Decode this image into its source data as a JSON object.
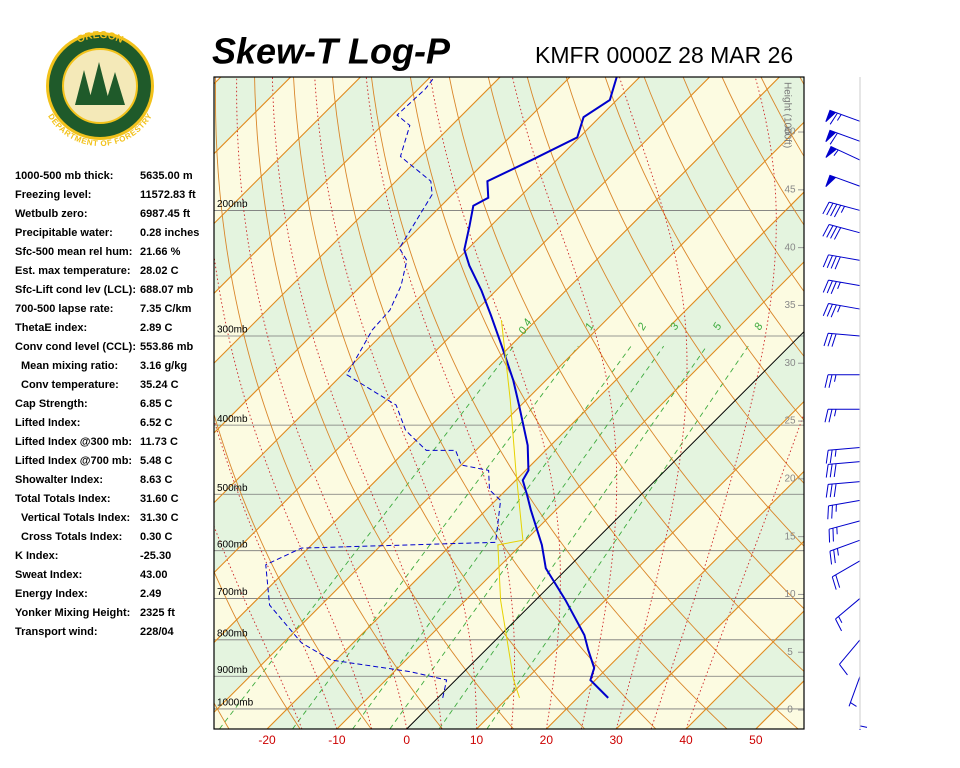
{
  "chart_data": {
    "type": "skew-t",
    "title": "Skew-T Log-P",
    "subtitle": "KMFR 0000Z 28 MAR 26",
    "y2label": "Height (1000ft)",
    "xlim": [
      -27.6,
      56.9
    ],
    "xticks": [
      -20,
      -10,
      0,
      10,
      20,
      30,
      40,
      50
    ],
    "ylim": [
      1067,
      130
    ],
    "log_y": true,
    "yticks": [
      {
        "value": 1000,
        "label": "1000mb"
      },
      {
        "value": 900,
        "label": "900mb"
      },
      {
        "value": 800,
        "label": "800mb"
      },
      {
        "value": 700,
        "label": "700mb"
      },
      {
        "value": 600,
        "label": "600mb"
      },
      {
        "value": 500,
        "label": "500mb"
      },
      {
        "value": 400,
        "label": "400mb"
      },
      {
        "value": 300,
        "label": "300mb"
      },
      {
        "value": 200,
        "label": "200mb"
      }
    ],
    "y2lim": [
      -1.64,
      54.76
    ],
    "y2ticks": [
      0,
      5,
      10,
      15,
      20,
      25,
      30,
      35,
      40,
      45,
      50
    ],
    "mixing_ratios": [
      0.4,
      1,
      2,
      3,
      5,
      8
    ],
    "series": [
      {
        "color": "#0000cc",
        "style": "solid",
        "pressure": [
          965,
          911,
          876,
          827,
          788,
          704,
          635,
          589,
          526,
          501,
          478,
          463,
          427,
          375,
          346,
          309,
          281,
          259,
          239,
          227,
          210,
          197,
          192,
          182,
          170,
          158,
          148,
          140,
          130
        ],
        "temperature": [
          24.4,
          19.3,
          18.1,
          14.7,
          12.0,
          4.3,
          -3.1,
          -7.0,
          -13.6,
          -16.3,
          -19.0,
          -19.6,
          -23.3,
          -30.3,
          -34.7,
          -41.4,
          -47.1,
          -52.1,
          -57.4,
          -60.4,
          -63.1,
          -65.4,
          -64.4,
          -66.9,
          -63.6,
          -60.3,
          -62.3,
          -61.0,
          -63.3
        ]
      },
      {
        "color": "#0000cc",
        "style": "dashed",
        "pressure": [
          965,
          911,
          887,
          854,
          808,
          715,
          628,
          595,
          584,
          510,
          493,
          463,
          455,
          434,
          434,
          407,
          375,
          340,
          294,
          276,
          255,
          235,
          226,
          190,
          182,
          168,
          152,
          147,
          135,
          130
        ],
        "temperature": [
          0.7,
          -1.3,
          -7.6,
          -20.7,
          -27.4,
          -37.4,
          -43.7,
          -41.0,
          -14.0,
          -19.3,
          -22.4,
          -25.3,
          -30.0,
          -32.9,
          -37.1,
          -42.9,
          -47.9,
          -59.3,
          -62.1,
          -62.4,
          -64.3,
          -67.1,
          -69.9,
          -72.9,
          -75.0,
          -82.9,
          -86.0,
          -89.3,
          -89.0,
          -89.4
        ]
      },
      {
        "color": "#e6d200",
        "style": "solid",
        "pressure": [
          965,
          911,
          704,
          589,
          580,
          463,
          368,
          285
        ],
        "temperature": [
          11.7,
          8.3,
          -5.0,
          -13.3,
          -10.4,
          -21.4,
          -32.4,
          -45.0
        ]
      }
    ],
    "winds": {
      "pressure": [
        150,
        160,
        170,
        185,
        200,
        215,
        235,
        255,
        275,
        300,
        340,
        380,
        430,
        450,
        480,
        510,
        545,
        580,
        620,
        700,
        800,
        900,
        965
      ],
      "direction": [
        290,
        290,
        295,
        290,
        285,
        285,
        280,
        280,
        280,
        275,
        270,
        270,
        265,
        265,
        265,
        260,
        255,
        250,
        240,
        230,
        220,
        200,
        180
      ],
      "speed": [
        65,
        60,
        55,
        50,
        45,
        40,
        40,
        35,
        35,
        30,
        25,
        25,
        25,
        30,
        30,
        25,
        25,
        25,
        20,
        15,
        10,
        5,
        5
      ],
      "color": "#0000cc"
    }
  },
  "logo": {
    "top": "OREGON",
    "bottom": "DEPARTMENT OF FORESTRY"
  },
  "stats": {
    "rows": [
      [
        "1000-500 mb thick:",
        "5635.00 m"
      ],
      [
        "Freezing level:",
        "11572.83 ft"
      ],
      [
        "Wetbulb zero:",
        "6987.45 ft"
      ],
      [
        "Precipitable water:",
        "0.28 inches"
      ],
      [
        "Sfc-500 mean rel hum:",
        "21.66 %"
      ],
      [
        "Est. max temperature:",
        "28.02 C"
      ],
      [
        "Sfc-Lift cond lev (LCL):",
        "688.07 mb"
      ],
      [
        "700-500 lapse rate:",
        "7.35 C/km"
      ],
      [
        "ThetaE index:",
        "2.89 C"
      ],
      [
        "Conv cond level (CCL):",
        "553.86 mb"
      ],
      [
        "Mean mixing ratio:",
        "3.16 g/kg"
      ],
      [
        "Conv temperature:",
        "35.24 C"
      ],
      [
        "Cap Strength:",
        "6.85 C"
      ],
      [
        "Lifted Index:",
        "6.52 C"
      ],
      [
        "Lifted Index @300 mb:",
        "11.73 C"
      ],
      [
        "Lifted Index @700 mb:",
        "5.48 C"
      ],
      [
        "Showalter Index:",
        "8.63 C"
      ],
      [
        "Total Totals Index:",
        "31.60 C"
      ],
      [
        "Vertical Totals Index:",
        "31.30 C"
      ],
      [
        "Cross Totals Index:",
        "0.30 C"
      ],
      [
        "K Index:",
        "-25.30"
      ],
      [
        "Sweat Index:",
        "43.00"
      ],
      [
        "Energy Index:",
        "2.49"
      ],
      [
        "Yonker Mixing Height:",
        "2325 ft"
      ],
      [
        "Transport wind:",
        "228/04"
      ]
    ]
  }
}
